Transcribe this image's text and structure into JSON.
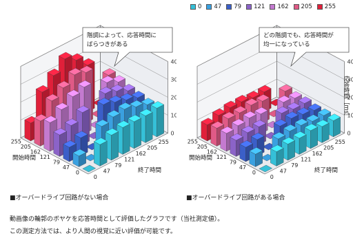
{
  "legend": [
    {
      "label": "0",
      "color": "#35c0d8"
    },
    {
      "label": "47",
      "color": "#3aa0e0"
    },
    {
      "label": "79",
      "color": "#3b5fc8"
    },
    {
      "label": "121",
      "color": "#8b63c8"
    },
    {
      "label": "162",
      "color": "#c47ad0"
    },
    {
      "label": "205",
      "color": "#e05a86"
    },
    {
      "label": "255",
      "color": "#e0203a"
    }
  ],
  "captions": {
    "left": "■オーバードライブ回路がない場合",
    "right": "■オーバードライブ回路がある場合"
  },
  "notes": [
    "動画像の輪郭のボヤケを応答時間として評価したグラフです（当社測定値）。",
    "この測定方法では、より人間の視覚に近い評価が可能です。"
  ],
  "chart_data": [
    {
      "type": "bar3d",
      "callout": [
        "階調によって、応答時間に",
        "ばらつきがある"
      ],
      "start_axis_label": "開始時間",
      "end_axis_label": "終了時間",
      "z_axis_label": "",
      "levels": [
        "0",
        "47",
        "79",
        "121",
        "162",
        "205",
        "255"
      ],
      "zticks": [
        0,
        10,
        20,
        30,
        40
      ],
      "zlim": [
        0,
        40
      ],
      "values": [
        [
          0,
          12,
          14,
          15,
          15,
          15,
          16
        ],
        [
          6,
          0,
          16,
          18,
          19,
          17,
          15
        ],
        [
          8,
          10,
          0,
          22,
          20,
          18,
          16
        ],
        [
          12,
          14,
          18,
          0,
          22,
          20,
          17
        ],
        [
          16,
          20,
          24,
          26,
          0,
          22,
          19
        ],
        [
          14,
          22,
          26,
          30,
          28,
          0,
          20
        ],
        [
          10,
          24,
          30,
          36,
          32,
          26,
          0
        ]
      ]
    },
    {
      "type": "bar3d",
      "callout": [
        "どの階調でも、応答時間が",
        "均一になっている"
      ],
      "start_axis_label": "開始時間",
      "end_axis_label": "終了時間",
      "z_axis_label": "応答時間［ms］",
      "levels": [
        "0",
        "47",
        "79",
        "121",
        "162",
        "205",
        "255"
      ],
      "zticks": [
        0,
        10,
        20,
        30,
        40
      ],
      "zlim": [
        0,
        40
      ],
      "values": [
        [
          0,
          8,
          9,
          9,
          10,
          9,
          9
        ],
        [
          7,
          0,
          9,
          10,
          10,
          9,
          9
        ],
        [
          8,
          9,
          0,
          10,
          11,
          10,
          9
        ],
        [
          9,
          10,
          10,
          0,
          11,
          10,
          10
        ],
        [
          10,
          11,
          12,
          11,
          0,
          11,
          10
        ],
        [
          10,
          12,
          12,
          13,
          12,
          0,
          11
        ],
        [
          9,
          11,
          12,
          12,
          11,
          11,
          0
        ]
      ]
    }
  ]
}
